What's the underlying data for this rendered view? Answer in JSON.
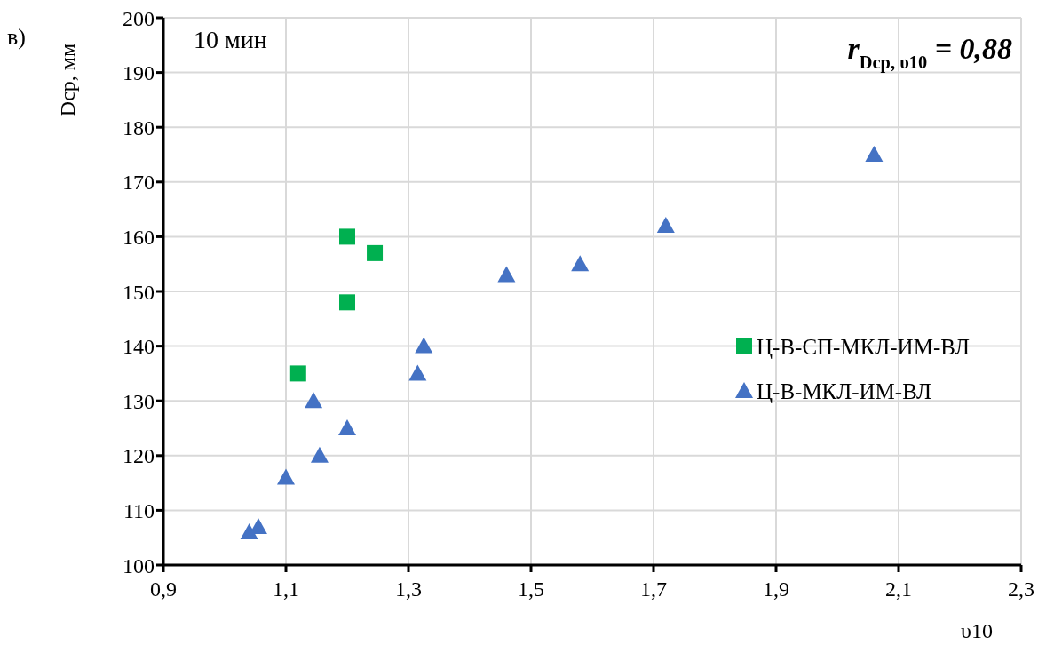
{
  "chart_data": {
    "type": "scatter",
    "xlabel": "υ10",
    "ylabel": "Dср, мм",
    "annotations": [
      "в)",
      "10 мин",
      "r$_{Dср, υ10}$ = 0,88"
    ],
    "xlim": [
      0.9,
      2.3
    ],
    "xticks": [
      {
        "value": 0.9,
        "label": "0,9"
      },
      {
        "value": 1.1,
        "label": "1,1"
      },
      {
        "value": 1.3,
        "label": "1,3"
      },
      {
        "value": 1.5,
        "label": "1,5"
      },
      {
        "value": 1.7,
        "label": "1,7"
      },
      {
        "value": 1.9,
        "label": "1,9"
      },
      {
        "value": 2.1,
        "label": "2,1"
      },
      {
        "value": 2.3,
        "label": "2,3"
      }
    ],
    "ylim": [
      100,
      200
    ],
    "yticks": [
      100,
      110,
      120,
      130,
      140,
      150,
      160,
      170,
      180,
      190,
      200
    ],
    "grid": true,
    "legend": "right",
    "series": [
      {
        "name": "Ц-В-СП-МКЛ-ИМ-ВЛ",
        "color": "#00b050",
        "marker": "square",
        "x": [
          1.2,
          1.245,
          1.2,
          1.12
        ],
        "values": [
          160,
          157,
          148,
          135
        ]
      },
      {
        "name": "Ц-В-МКЛ-ИМ-ВЛ",
        "color": "#4472c4",
        "marker": "triangle",
        "x": [
          1.04,
          1.055,
          1.1,
          1.155,
          1.145,
          1.2,
          1.315,
          1.325,
          1.46,
          1.58,
          1.72,
          2.06
        ],
        "values": [
          106,
          107,
          116,
          120,
          130,
          125,
          135,
          140,
          153,
          155,
          162,
          175
        ]
      }
    ]
  }
}
